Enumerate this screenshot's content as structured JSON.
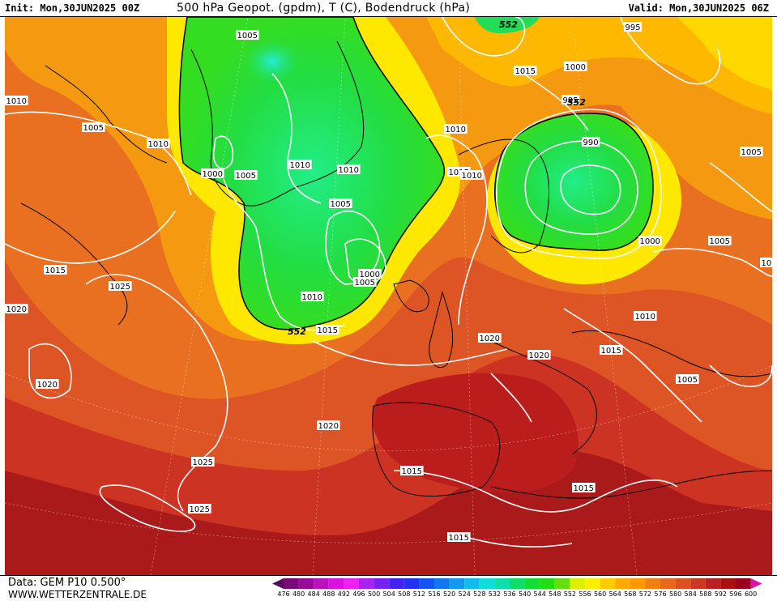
{
  "header": {
    "init": "Init: Mon,30JUN2025 00Z",
    "title": "500 hPa Geopot. (gpdm), T (C), Bodendruck (hPa)",
    "valid": "Valid: Mon,30JUN2025 06Z"
  },
  "footer": {
    "data_source": "Data: GEM P10 0.500°",
    "website": "WWW.WETTERZENTRALE.DE"
  },
  "legend": {
    "values": [
      "476",
      "480",
      "484",
      "488",
      "492",
      "496",
      "500",
      "504",
      "508",
      "512",
      "516",
      "520",
      "524",
      "528",
      "532",
      "536",
      "540",
      "544",
      "548",
      "552",
      "556",
      "560",
      "564",
      "568",
      "572",
      "576",
      "580",
      "584",
      "588",
      "592",
      "596",
      "600"
    ],
    "colors": [
      "#5a0a5a",
      "#7a0a7a",
      "#9a0a9a",
      "#bb11bb",
      "#dd11dd",
      "#ee22ee",
      "#aa22ee",
      "#7722ee",
      "#4422ee",
      "#2233ee",
      "#1155ee",
      "#1177ee",
      "#1199ee",
      "#11bbee",
      "#11dddd",
      "#11ddaa",
      "#11dd66",
      "#11dd33",
      "#22dd11",
      "#66dd11",
      "#ddee00",
      "#ffee00",
      "#ffcc00",
      "#ffaa00",
      "#ff9900",
      "#f08010",
      "#e86820",
      "#dd5020",
      "#cc3820",
      "#bb2020",
      "#aa1010",
      "#990020",
      "#dd11aa"
    ]
  },
  "isobar_labels": [
    {
      "text": "1005"
    },
    {
      "text": "1010"
    },
    {
      "text": "1005"
    },
    {
      "text": "1010"
    },
    {
      "text": "1000"
    },
    {
      "text": "1005"
    },
    {
      "text": "1010"
    },
    {
      "text": "1010"
    },
    {
      "text": "1015"
    },
    {
      "text": "1025"
    },
    {
      "text": "1020"
    },
    {
      "text": "1020"
    },
    {
      "text": "1025"
    },
    {
      "text": "1025"
    },
    {
      "text": "1020"
    },
    {
      "text": "1005"
    },
    {
      "text": "1000"
    },
    {
      "text": "1005"
    },
    {
      "text": "1010"
    },
    {
      "text": "1015"
    },
    {
      "text": "1010"
    },
    {
      "text": "1015"
    },
    {
      "text": "1010"
    },
    {
      "text": "995"
    },
    {
      "text": "1000"
    },
    {
      "text": "1015"
    },
    {
      "text": "995"
    },
    {
      "text": "990"
    },
    {
      "text": "1000"
    },
    {
      "text": "1005"
    },
    {
      "text": "1005"
    },
    {
      "text": "1010"
    },
    {
      "text": "1020"
    },
    {
      "text": "1020"
    },
    {
      "text": "1015"
    },
    {
      "text": "1005"
    },
    {
      "text": "1015"
    },
    {
      "text": "1015"
    },
    {
      "text": "1015"
    },
    {
      "text": "10"
    }
  ],
  "contour_labels": [
    {
      "text": "552"
    },
    {
      "text": "552"
    },
    {
      "text": "552"
    }
  ]
}
